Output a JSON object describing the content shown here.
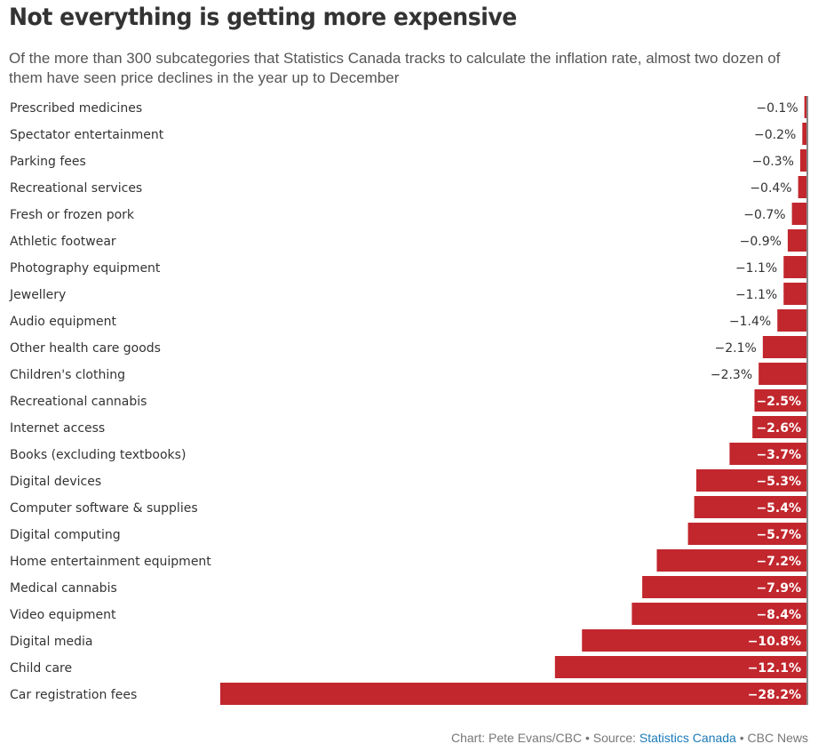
{
  "header": {
    "title": "Not everything is getting more expensive",
    "subtitle": "Of the more than 300 subcategories that Statistics Canada tracks to calculate the inflation rate, almost two dozen of them have seen price declines in the year up to December"
  },
  "footer": {
    "chart_credit": "Chart: Pete Evans/CBC",
    "separator": " • ",
    "source_prefix": "Source: ",
    "source_link": "Statistics Canada",
    "publisher": "CBC News"
  },
  "colors": {
    "bar": "#c1272d",
    "axis": "#888888",
    "text": "#333333",
    "link": "#1a7ab8"
  },
  "chart_data": {
    "type": "bar",
    "orientation": "horizontal",
    "title": "Not everything is getting more expensive",
    "xlabel": "",
    "ylabel": "",
    "unit": "%",
    "xlim": [
      -28.2,
      0
    ],
    "grid": false,
    "legend": "none",
    "label_inside_threshold": -2.5,
    "categories": [
      "Prescribed medicines",
      "Spectator entertainment",
      "Parking fees",
      "Recreational services",
      "Fresh or frozen pork",
      "Athletic footwear",
      "Photography equipment",
      "Jewellery",
      "Audio equipment",
      "Other health care goods",
      "Children's clothing",
      "Recreational cannabis",
      "Internet access",
      "Books (excluding textbooks)",
      "Digital devices",
      "Computer software & supplies",
      "Digital computing",
      "Home entertainment equipment",
      "Medical cannabis",
      "Video equipment",
      "Digital media",
      "Child care",
      "Car registration fees"
    ],
    "values": [
      -0.1,
      -0.2,
      -0.3,
      -0.4,
      -0.7,
      -0.9,
      -1.1,
      -1.1,
      -1.4,
      -2.1,
      -2.3,
      -2.5,
      -2.6,
      -3.7,
      -5.3,
      -5.4,
      -5.7,
      -7.2,
      -7.9,
      -8.4,
      -10.8,
      -12.1,
      -28.2
    ],
    "value_labels": [
      "−0.1%",
      "−0.2%",
      "−0.3%",
      "−0.4%",
      "−0.7%",
      "−0.9%",
      "−1.1%",
      "−1.1%",
      "−1.4%",
      "−2.1%",
      "−2.3%",
      "−2.5%",
      "−2.6%",
      "−3.7%",
      "−5.3%",
      "−5.4%",
      "−5.7%",
      "−7.2%",
      "−7.9%",
      "−8.4%",
      "−10.8%",
      "−12.1%",
      "−28.2%"
    ]
  }
}
